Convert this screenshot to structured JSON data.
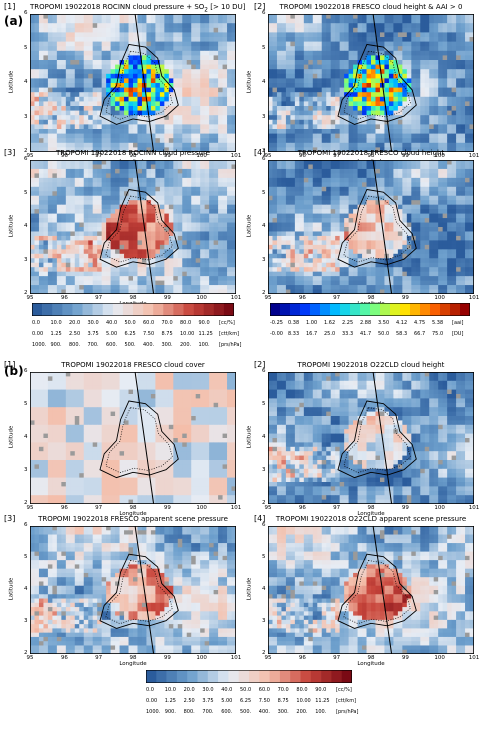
{
  "sections": [
    {
      "label": "(a)",
      "panels": [
        {
          "index": "[1]",
          "title_html": "TROPOMI 19022018 ROCINN cloud pressure + SO<sub>2</sub> [> 10 DU]",
          "scheme": "so2"
        },
        {
          "index": "[2]",
          "title_html": "TROPOMI 19022018 FRESCO cloud height &amp; AAI > 0",
          "scheme": "aai"
        },
        {
          "index": "[3]",
          "title_html": "TROPOMI 19022018 ROCINN cloud pressure",
          "scheme": "pressure"
        },
        {
          "index": "[4]",
          "title_html": "TROPOMI 19022018 FRESCO cloud height",
          "scheme": "height"
        }
      ]
    },
    {
      "label": "(b)",
      "panels": [
        {
          "index": "[1]",
          "title_html": "TROPOMI 19022018 FRESCO cloud cover",
          "scheme": "cover"
        },
        {
          "index": "[2]",
          "title_html": "TROPOMI 19022018 O22CLD cloud height",
          "scheme": "height"
        },
        {
          "index": "[3]",
          "title_html": "TROPOMI 19022018 FRESCO apparent scene pressure",
          "scheme": "scene"
        },
        {
          "index": "[4]",
          "title_html": "TROPOMI 19022018 O22CLD apparent scene pressure",
          "scheme": "scene"
        }
      ]
    }
  ],
  "axes": {
    "xlabel": "Longitude",
    "ylabel": "Latitude",
    "xticks": [
      "95",
      "96",
      "97",
      "98",
      "99",
      "100",
      "101"
    ],
    "yticks": [
      "2",
      "3",
      "4",
      "5",
      "6"
    ]
  },
  "colorbars": {
    "cloud_cover": {
      "unit": "[cc/%]",
      "ticks": [
        "0.0",
        "10.0",
        "20.0",
        "30.0",
        "40.0",
        "50.0",
        "60.0",
        "70.0",
        "80.0",
        "90.0"
      ]
    },
    "cloud_height": {
      "unit": "[ctt/km]",
      "ticks": [
        "0.00",
        "1.25",
        "2.50",
        "3.75",
        "5.00",
        "6.25",
        "7.50",
        "8.75",
        "10.00",
        "11.25"
      ]
    },
    "cloud_pressure": {
      "unit": "[prs/hPa]",
      "ticks": [
        "1000.",
        "900.",
        "800.",
        "700.",
        "600.",
        "500.",
        "400.",
        "300.",
        "200.",
        "100."
      ]
    },
    "aai": {
      "unit": "[aai]",
      "ticks": [
        "-0.25",
        "0.38",
        "1.00",
        "1.62",
        "2.25",
        "2.88",
        "3.50",
        "4.12",
        "4.75",
        "5.38"
      ]
    },
    "so2": {
      "unit": "[DU]",
      "ticks": [
        "-0.00",
        "8.33",
        "16.7",
        "25.0",
        "33.3",
        "41.7",
        "50.0",
        "58.3",
        "66.7",
        "75.0"
      ]
    }
  },
  "colors": {
    "low": "#2b5c9c",
    "mid": "#f4f4f4",
    "high": "#7a0a14",
    "missing": "#9a9a9a"
  },
  "chart_data": [
    {
      "type": "heatmap",
      "title": "TROPOMI 19022018 ROCINN cloud pressure + SO2 [> 10 DU]",
      "xlabel": "Longitude",
      "ylabel": "Latitude",
      "xlim": [
        95,
        101
      ],
      "ylim": [
        2,
        6
      ]
    },
    {
      "type": "heatmap",
      "title": "TROPOMI 19022018 FRESCO cloud height & AAI > 0",
      "xlabel": "Longitude",
      "ylabel": "Latitude",
      "xlim": [
        95,
        101
      ],
      "ylim": [
        2,
        6
      ]
    },
    {
      "type": "heatmap",
      "title": "TROPOMI 19022018 ROCINN cloud pressure",
      "xlabel": "Longitude",
      "ylabel": "Latitude",
      "xlim": [
        95,
        101
      ],
      "ylim": [
        2,
        6
      ]
    },
    {
      "type": "heatmap",
      "title": "TROPOMI 19022018 FRESCO cloud height",
      "xlabel": "Longitude",
      "ylabel": "Latitude",
      "xlim": [
        95,
        101
      ],
      "ylim": [
        2,
        6
      ]
    },
    {
      "type": "heatmap",
      "title": "TROPOMI 19022018 FRESCO cloud cover",
      "xlabel": "Longitude",
      "ylabel": "Latitude",
      "xlim": [
        95,
        101
      ],
      "ylim": [
        2,
        6
      ]
    },
    {
      "type": "heatmap",
      "title": "TROPOMI 19022018 O22CLD cloud height",
      "xlabel": "Longitude",
      "ylabel": "Latitude",
      "xlim": [
        95,
        101
      ],
      "ylim": [
        2,
        6
      ]
    },
    {
      "type": "heatmap",
      "title": "TROPOMI 19022018 FRESCO apparent scene pressure",
      "xlabel": "Longitude",
      "ylabel": "Latitude",
      "xlim": [
        95,
        101
      ],
      "ylim": [
        2,
        6
      ]
    },
    {
      "type": "heatmap",
      "title": "TROPOMI 19022018 O22CLD apparent scene pressure",
      "xlabel": "Longitude",
      "ylabel": "Latitude",
      "xlim": [
        95,
        101
      ],
      "ylim": [
        2,
        6
      ]
    }
  ]
}
